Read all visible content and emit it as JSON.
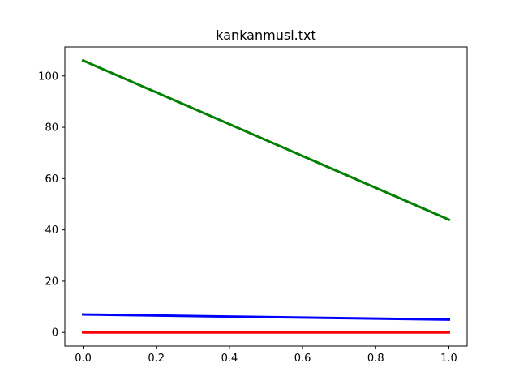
{
  "chart_data": {
    "type": "line",
    "title": "kankanmusi.txt",
    "xlabel": "",
    "ylabel": "",
    "x": [
      0.0,
      1.0
    ],
    "xlim": [
      -0.05,
      1.05
    ],
    "ylim": [
      -5.3,
      111.3
    ],
    "xticks": [
      0.0,
      0.2,
      0.4,
      0.6,
      0.8,
      1.0
    ],
    "xtick_labels": [
      "0.0",
      "0.2",
      "0.4",
      "0.6",
      "0.8",
      "1.0"
    ],
    "yticks": [
      0,
      20,
      40,
      60,
      80,
      100
    ],
    "ytick_labels": [
      "0",
      "20",
      "40",
      "60",
      "80",
      "100"
    ],
    "grid": false,
    "legend": false,
    "series": [
      {
        "color": "#008000",
        "values": [
          106,
          44
        ]
      },
      {
        "color": "#0000ff",
        "values": [
          7,
          5
        ]
      },
      {
        "color": "#ff0000",
        "values": [
          0,
          0
        ]
      }
    ]
  }
}
